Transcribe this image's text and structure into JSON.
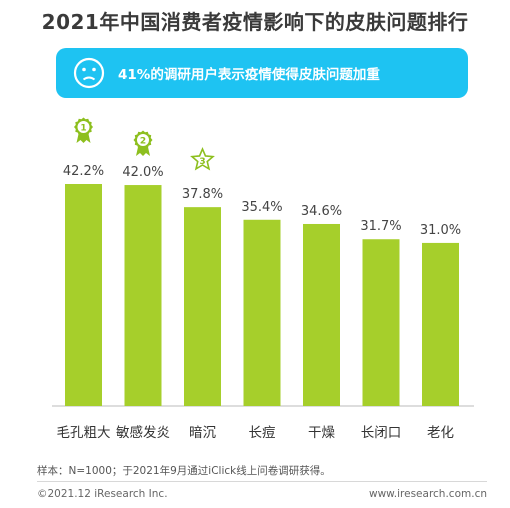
{
  "title": "2021年中国消费者疫情影响下的皮肤问题排行",
  "banner": {
    "icon": "sad-face-icon",
    "text": "41%的调研用户表示疫情使得皮肤问题加重",
    "color": "#1ec3f2"
  },
  "chart_data": {
    "type": "bar",
    "categories": [
      "毛孔粗大",
      "敏感发炎",
      "暗沉",
      "长痘",
      "干燥",
      "长闭口",
      "老化"
    ],
    "values": [
      42.2,
      42.0,
      37.8,
      35.4,
      34.6,
      31.7,
      31.0
    ],
    "value_labels": [
      "42.2%",
      "42.0%",
      "37.8%",
      "35.4%",
      "34.6%",
      "31.7%",
      "31.0%"
    ],
    "ylim": [
      0,
      42.2
    ],
    "bar_color": "#a6cf2b",
    "grid": false,
    "rank_badges": [
      {
        "rank": "1",
        "icon": "medal-first-icon"
      },
      {
        "rank": "2",
        "icon": "medal-second-icon"
      },
      {
        "rank": "3",
        "icon": "star-third-icon"
      }
    ]
  },
  "note": "样本：N=1000；于2021年9月通过iClick线上问卷调研获得。",
  "footer": {
    "copyright": "©2021.12 iResearch Inc.",
    "url": "www.iresearch.com.cn"
  }
}
